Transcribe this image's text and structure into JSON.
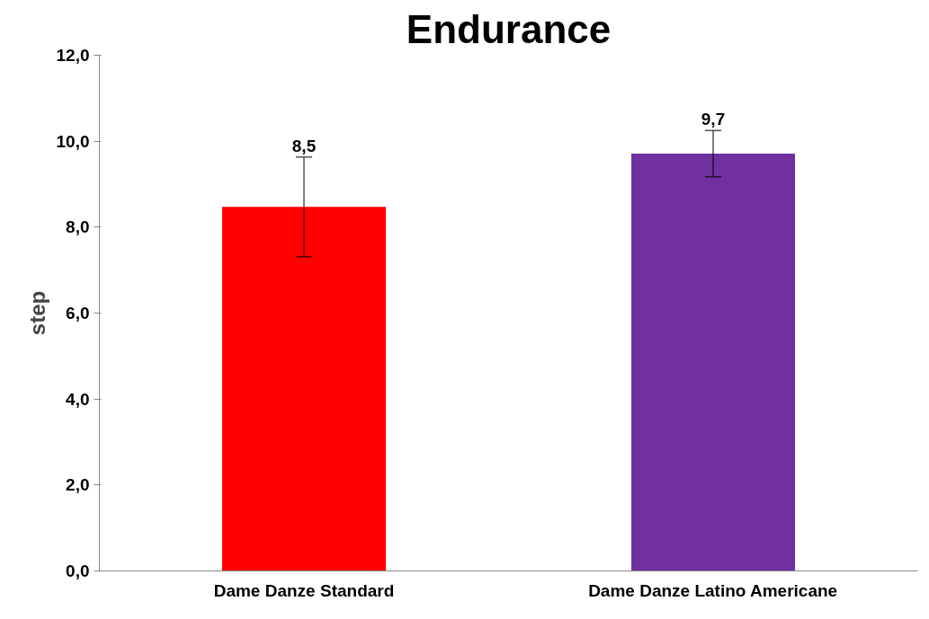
{
  "chart_data": {
    "type": "bar",
    "title": "Endurance",
    "ylabel": "step",
    "categories": [
      "Dame Danze Standard",
      "Dame Danze Latino Americane"
    ],
    "values": [
      8.47,
      9.71
    ],
    "colors": [
      "#ff0000",
      "#7030a0"
    ],
    "errors": [
      1.16,
      0.54
    ],
    "value_labels": [
      "8,5",
      "9,7"
    ],
    "ylim": [
      0,
      12
    ],
    "yticks": [
      {
        "value": 0,
        "label": "0,0"
      },
      {
        "value": 2,
        "label": "2,0"
      },
      {
        "value": 4,
        "label": "4,0"
      },
      {
        "value": 6,
        "label": "6,0"
      },
      {
        "value": 8,
        "label": "8,0"
      },
      {
        "value": 10,
        "label": "10,0"
      },
      {
        "value": 12,
        "label": "12,0"
      }
    ],
    "grid": false
  }
}
